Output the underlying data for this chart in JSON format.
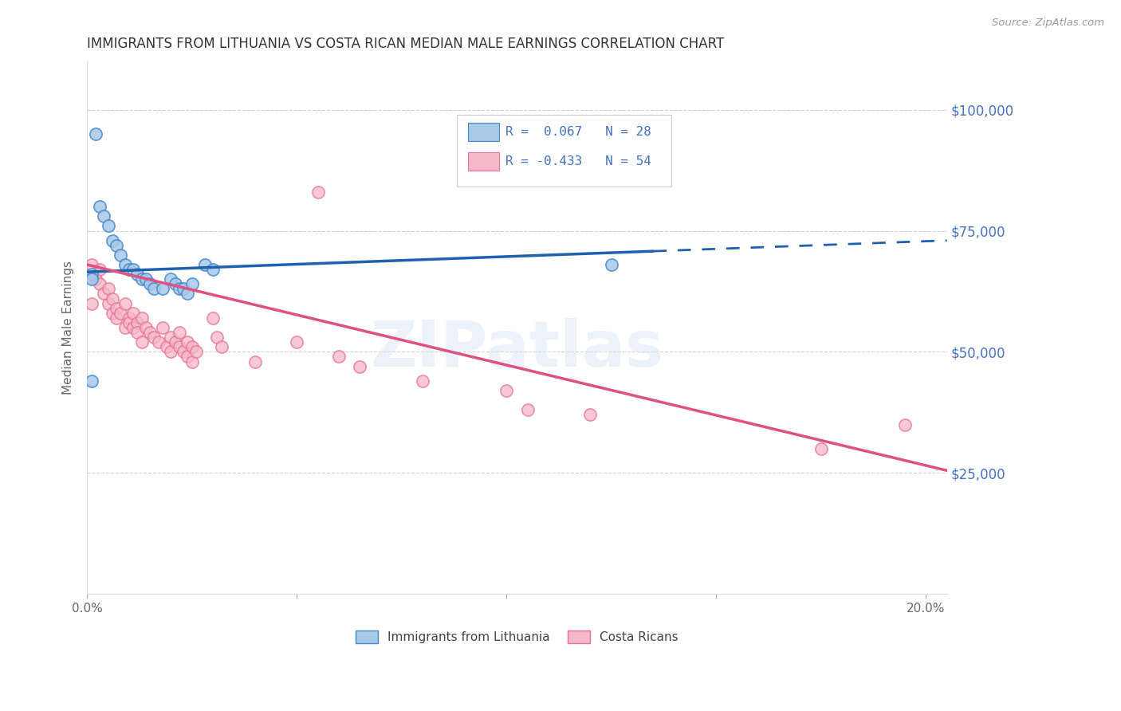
{
  "title": "IMMIGRANTS FROM LITHUANIA VS COSTA RICAN MEDIAN MALE EARNINGS CORRELATION CHART",
  "source": "Source: ZipAtlas.com",
  "xlabel_ticks": [
    "0.0%",
    "",
    "",
    "",
    "20.0%"
  ],
  "xlabel_tick_vals": [
    0.0,
    0.05,
    0.1,
    0.15,
    0.2
  ],
  "ylabel": "Median Male Earnings",
  "ylabel_ticks": [
    0,
    25000,
    50000,
    75000,
    100000
  ],
  "ylabel_tick_labels": [
    "",
    "$25,000",
    "$50,000",
    "$75,000",
    "$100,000"
  ],
  "xmin": 0.0,
  "xmax": 0.205,
  "ymin": 0,
  "ymax": 110000,
  "legend_labels": [
    "Immigrants from Lithuania",
    "Costa Ricans"
  ],
  "legend_R": [
    0.067,
    -0.433
  ],
  "legend_N": [
    28,
    54
  ],
  "blue_color": "#a8c8e8",
  "pink_color": "#f4b8c8",
  "blue_edge_color": "#4488cc",
  "pink_edge_color": "#e87090",
  "blue_line_color": "#2060b0",
  "pink_line_color": "#e05080",
  "title_color": "#333333",
  "axis_tick_color": "#666666",
  "right_axis_color": "#4472c4",
  "watermark": "ZIPatlas",
  "background_color": "#ffffff",
  "grid_color": "#cccccc",
  "blue_trend_x": [
    0.0,
    0.205
  ],
  "blue_trend_y": [
    66500,
    73000
  ],
  "blue_trend_solid_end": 0.135,
  "pink_trend_x": [
    0.0,
    0.205
  ],
  "pink_trend_y": [
    68000,
    25500
  ],
  "pink_trend_solid_end": 0.205,
  "blue_scatter_x": [
    0.002,
    0.003,
    0.004,
    0.005,
    0.006,
    0.007,
    0.008,
    0.009,
    0.01,
    0.011,
    0.012,
    0.013,
    0.014,
    0.015,
    0.016,
    0.018,
    0.02,
    0.021,
    0.022,
    0.023,
    0.024,
    0.025,
    0.028,
    0.03,
    0.001,
    0.001,
    0.001,
    0.125
  ],
  "blue_scatter_y": [
    95000,
    80000,
    78000,
    76000,
    73000,
    72000,
    70000,
    68000,
    67000,
    67000,
    66000,
    65000,
    65000,
    64000,
    63000,
    63000,
    65000,
    64000,
    63000,
    63000,
    62000,
    64000,
    68000,
    67000,
    66000,
    65000,
    44000,
    68000
  ],
  "pink_scatter_x": [
    0.001,
    0.001,
    0.002,
    0.003,
    0.003,
    0.004,
    0.005,
    0.005,
    0.006,
    0.006,
    0.007,
    0.007,
    0.008,
    0.009,
    0.009,
    0.01,
    0.01,
    0.011,
    0.011,
    0.012,
    0.012,
    0.013,
    0.013,
    0.014,
    0.015,
    0.016,
    0.017,
    0.018,
    0.019,
    0.02,
    0.02,
    0.021,
    0.022,
    0.022,
    0.023,
    0.024,
    0.024,
    0.025,
    0.025,
    0.026,
    0.03,
    0.031,
    0.032,
    0.04,
    0.05,
    0.055,
    0.06,
    0.065,
    0.08,
    0.1,
    0.105,
    0.12,
    0.175,
    0.195
  ],
  "pink_scatter_y": [
    68000,
    60000,
    65000,
    67000,
    64000,
    62000,
    63000,
    60000,
    61000,
    58000,
    59000,
    57000,
    58000,
    60000,
    55000,
    57000,
    56000,
    55000,
    58000,
    56000,
    54000,
    57000,
    52000,
    55000,
    54000,
    53000,
    52000,
    55000,
    51000,
    53000,
    50000,
    52000,
    51000,
    54000,
    50000,
    52000,
    49000,
    51000,
    48000,
    50000,
    57000,
    53000,
    51000,
    48000,
    52000,
    83000,
    49000,
    47000,
    44000,
    42000,
    38000,
    37000,
    30000,
    35000
  ]
}
